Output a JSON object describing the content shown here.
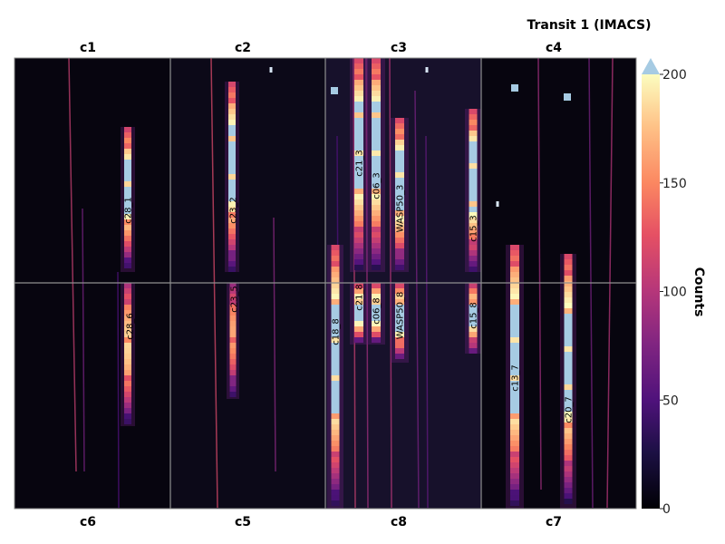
{
  "chart_data": {
    "type": "heatmap",
    "title": "Transit 1 (IMACS)",
    "colorbar": {
      "label": "Counts",
      "range": [
        0,
        200
      ],
      "ticks": [
        0,
        50,
        100,
        150,
        200
      ],
      "extend": "max",
      "extend_color": "#a6cbe3",
      "colormap": "magma"
    },
    "chips_top": [
      "c1",
      "c2",
      "c3",
      "c4"
    ],
    "chips_bottom": [
      "c6",
      "c5",
      "c8",
      "c7"
    ],
    "spectra": [
      {
        "label": "c28_1",
        "chip": "c1",
        "peak": 200
      },
      {
        "label": "c28_6",
        "chip": "c6",
        "peak": 160
      },
      {
        "label": "c23_2",
        "chip": "c2",
        "peak": 200
      },
      {
        "label": "c23_5",
        "chip": "c5",
        "peak": 140
      },
      {
        "label": "c21_3",
        "chip": "c3",
        "peak": 200
      },
      {
        "label": "c21_8",
        "chip": "c8",
        "peak": 200
      },
      {
        "label": "c06_3",
        "chip": "c3",
        "peak": 200
      },
      {
        "label": "c06_8",
        "chip": "c8",
        "peak": 200
      },
      {
        "label": "WASP50_3",
        "chip": "c3",
        "peak": 200
      },
      {
        "label": "WASP50_8",
        "chip": "c8",
        "peak": 200
      },
      {
        "label": "c18_8",
        "chip": "c8",
        "peak": 200
      },
      {
        "label": "c15_3",
        "chip": "c3",
        "peak": 200
      },
      {
        "label": "c15_8",
        "chip": "c8",
        "peak": 200
      },
      {
        "label": "c13_7",
        "chip": "c7",
        "peak": 200
      },
      {
        "label": "c20_7",
        "chip": "c7",
        "peak": 200
      }
    ]
  }
}
